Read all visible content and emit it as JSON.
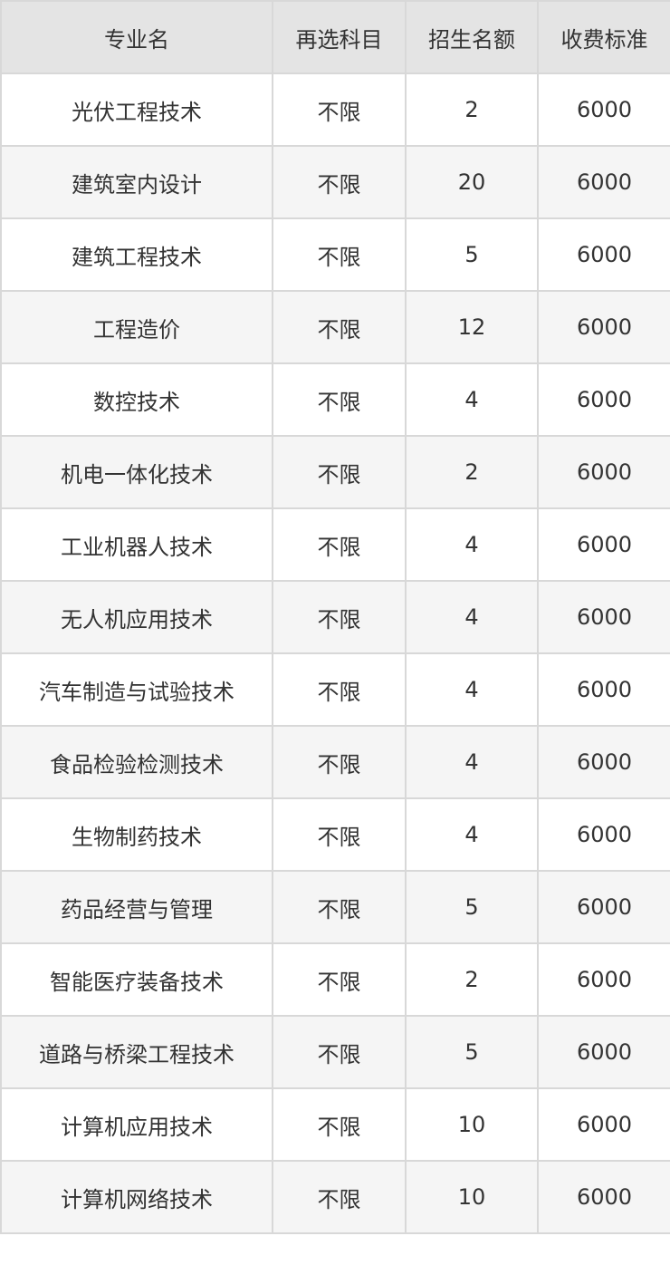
{
  "headers": [
    "专业名",
    "再选科目",
    "招生名额",
    "收费标准"
  ],
  "rows": [
    [
      "光伏工程技术",
      "不限",
      "2",
      "6000"
    ],
    [
      "建筑室内设计",
      "不限",
      "20",
      "6000"
    ],
    [
      "建筑工程技术",
      "不限",
      "5",
      "6000"
    ],
    [
      "工程造价",
      "不限",
      "12",
      "6000"
    ],
    [
      "数控技术",
      "不限",
      "4",
      "6000"
    ],
    [
      "机电一体化技术",
      "不限",
      "2",
      "6000"
    ],
    [
      "工业机器人技术",
      "不限",
      "4",
      "6000"
    ],
    [
      "无人机应用技术",
      "不限",
      "4",
      "6000"
    ],
    [
      "汽车制造与试验技术",
      "不限",
      "4",
      "6000"
    ],
    [
      "食品检验检测技术",
      "不限",
      "4",
      "6000"
    ],
    [
      "生物制药技术",
      "不限",
      "4",
      "6000"
    ],
    [
      "药品经营与管理",
      "不限",
      "5",
      "6000"
    ],
    [
      "智能医疗装备技术",
      "不限",
      "2",
      "6000"
    ],
    [
      "道路与桥梁工程技术",
      "不限",
      "5",
      "6000"
    ],
    [
      "计算机应用技术",
      "不限",
      "10",
      "6000"
    ],
    [
      "计算机网络技术",
      "不限",
      "10",
      "6000"
    ]
  ]
}
